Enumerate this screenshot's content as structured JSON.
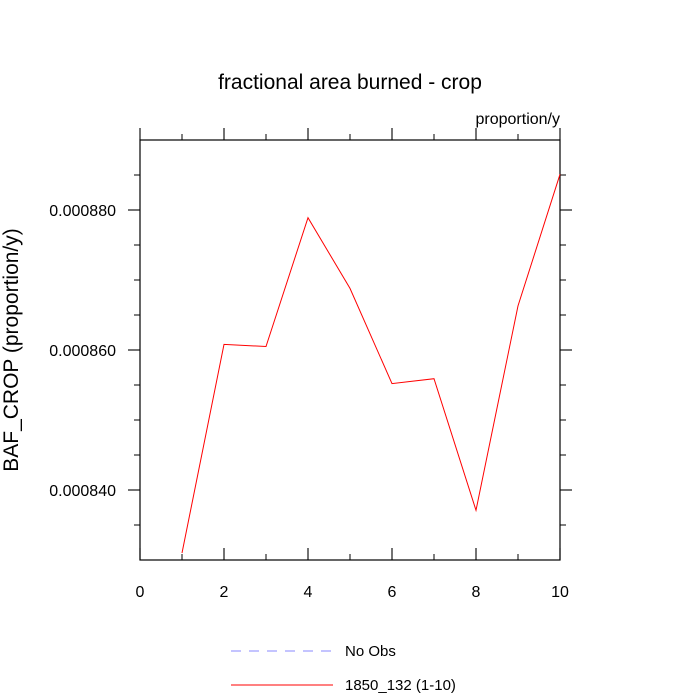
{
  "chart_data": {
    "type": "line",
    "title": "fractional area burned - crop",
    "units_label": "proportion/y",
    "xlabel": "",
    "ylabel": "BAF_CROP  (proportion/y)",
    "xlim": [
      0,
      10
    ],
    "ylim": [
      0.00083,
      0.00089
    ],
    "x_ticks": [
      0,
      2,
      4,
      6,
      8,
      10
    ],
    "x_tick_labels": [
      "0",
      "2",
      "4",
      "6",
      "8",
      "10"
    ],
    "y_ticks": [
      0.00084,
      0.00086,
      0.00088
    ],
    "y_tick_labels": [
      "0.000840",
      "0.000860",
      "0.000880"
    ],
    "grid": false,
    "legend_placement": "bottom",
    "series": [
      {
        "name": "No Obs",
        "color": "#8888ff",
        "dash": "dashed",
        "x": [],
        "values": []
      },
      {
        "name": "1850_132 (1-10)",
        "color": "#ff0000",
        "dash": "solid",
        "x": [
          1,
          2,
          3,
          4,
          5,
          6,
          7,
          8,
          9,
          10
        ],
        "values": [
          0.000831,
          0.0008608,
          0.0008605,
          0.0008789,
          0.0008688,
          0.0008552,
          0.0008559,
          0.0008371,
          0.0008663,
          0.0008851
        ]
      }
    ]
  }
}
